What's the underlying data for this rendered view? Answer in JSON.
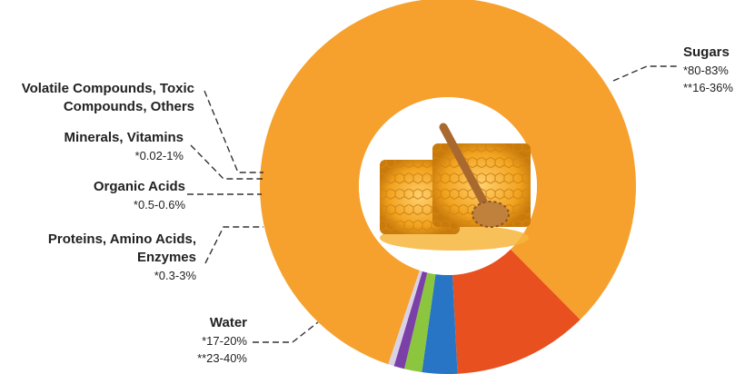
{
  "chart_data": {
    "type": "donut",
    "center_image": "honeycomb-with-honey-dipper",
    "segments": [
      {
        "key": "sugars",
        "name": "Sugars",
        "ranges": [
          "*80-83%",
          "**16-36%"
        ],
        "share": 81.7,
        "color": "#F6A12D"
      },
      {
        "key": "water",
        "name": "Water",
        "ranges": [
          "*17-20%",
          "**23-40%"
        ],
        "share": 11.5,
        "color": "#E8501F"
      },
      {
        "key": "proteins",
        "name": "Proteins, Amino Acids, Enzymes",
        "ranges": [
          "*0.3-3%"
        ],
        "share": 3.0,
        "color": "#2775C4"
      },
      {
        "key": "organic",
        "name": "Organic Acids",
        "ranges": [
          "*0.5-0.6%"
        ],
        "share": 1.5,
        "color": "#8CC63F"
      },
      {
        "key": "minerals",
        "name": "Minerals, Vitamins",
        "ranges": [
          "*0.02-1%"
        ],
        "share": 0.9,
        "color": "#7B3FA8"
      },
      {
        "key": "volatile",
        "name": "Volatile Compounds,  Toxic Compounds, Others",
        "ranges": [],
        "share": 0.5,
        "color": "#D9D2E6"
      }
    ]
  },
  "labels": {
    "sugars": {
      "name": "Sugars",
      "r1": "*80-83%",
      "r2": "**16-36%"
    },
    "volatile": {
      "line1": "Volatile Compounds,  Toxic",
      "line2": "Compounds, Others"
    },
    "minerals": {
      "name": "Minerals, Vitamins",
      "r1": "*0.02-1%"
    },
    "organic": {
      "name": "Organic Acids",
      "r1": "*0.5-0.6%"
    },
    "proteins": {
      "line1": "Proteins, Amino Acids,",
      "line2": "Enzymes",
      "r1": "*0.3-3%"
    },
    "water": {
      "name": "Water",
      "r1": "*17-20%",
      "r2": "**23-40%"
    }
  }
}
